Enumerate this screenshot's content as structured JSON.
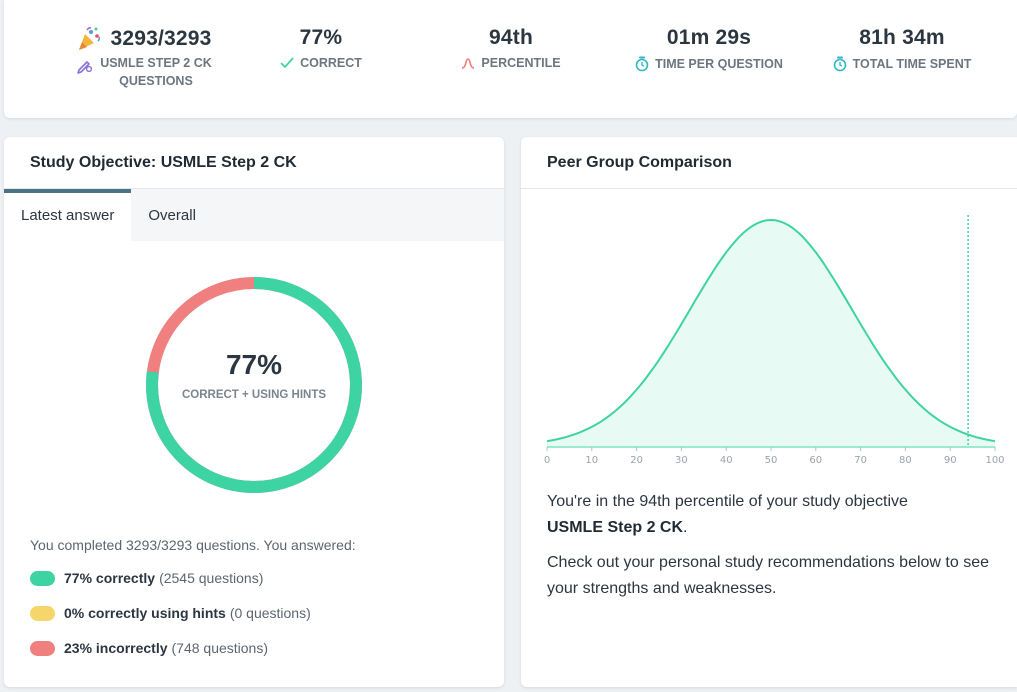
{
  "stats": [
    {
      "value": "3293/3293",
      "label_line1": "USMLE STEP 2 CK",
      "label_line2": "QUESTIONS",
      "icon": "edit-icon"
    },
    {
      "value": "77%",
      "label": "CORRECT",
      "icon": "checkmark-icon"
    },
    {
      "value": "94th",
      "label": "PERCENTILE",
      "icon": "bell-curve-icon"
    },
    {
      "value": "01m 29s",
      "label": "TIME PER QUESTION",
      "icon": "stopwatch-icon"
    },
    {
      "value": "81h 34m",
      "label": "TOTAL TIME SPENT",
      "icon": "stopwatch-icon"
    }
  ],
  "colors": {
    "correct": "#3ed3a3",
    "hints": "#f5d66b",
    "incorrect": "#f08080",
    "accent": "#4a7385"
  },
  "study_objective": {
    "title": "Study Objective: USMLE Step 2 CK",
    "tabs": [
      "Latest answer",
      "Overall"
    ],
    "active_tab": "Latest answer",
    "gauge": {
      "value": "77%",
      "label": "CORRECT + USING HINTS",
      "correct_pct": 77,
      "hints_pct": 0,
      "incorrect_pct": 23
    },
    "summary": "You completed 3293/3293 questions. You answered:",
    "legend": [
      {
        "bold": "77% correctly",
        "detail": "(2545 questions)",
        "color": "#3ed3a3"
      },
      {
        "bold": "0% correctly using hints",
        "detail": "(0 questions)",
        "color": "#f5d66b"
      },
      {
        "bold": "23% incorrectly",
        "detail": "(748 questions)",
        "color": "#f08080"
      }
    ]
  },
  "peer_group": {
    "title": "Peer Group Comparison",
    "text_1": "You're in the 94th percentile of your study objective",
    "text_1_bold": "USMLE Step 2 CK",
    "text_2": "Check out your personal study recommendations below to see your strengths and weaknesses."
  },
  "chart_data": {
    "type": "area",
    "title": "Peer Group Comparison",
    "distribution": "normal",
    "mean": 50,
    "std_dev": 18,
    "x_ticks": [
      "0",
      "10",
      "20",
      "30",
      "40",
      "50",
      "60",
      "70",
      "80",
      "90",
      "100"
    ],
    "marker_percentile": 94,
    "xlim": [
      0,
      100
    ]
  }
}
